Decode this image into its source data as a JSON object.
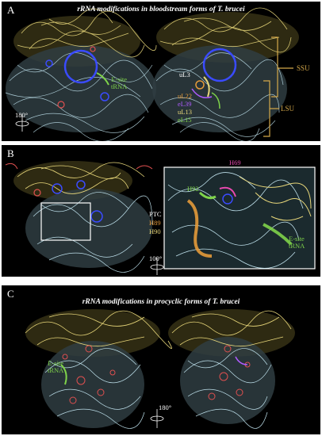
{
  "colors": {
    "background": "#000000",
    "ssu": "#e8d77a",
    "lsu": "#bfe1ec",
    "modification": "#3a4bff",
    "trna": "#7fd34a",
    "bracket": "#d4a84a",
    "ul22": "#e49a3a",
    "el39": "#b05cff",
    "ul13": "#e8d77a",
    "el15": "#7fd34a",
    "h69": "#e84ab0",
    "h89": "#e49a3a",
    "h92": "#7fd34a",
    "h90": "#e8d77a"
  },
  "panel_a": {
    "letter": "A",
    "title": "rRNA modifications in bloodstream forms of T. brucei",
    "esite_label": "E-site\ntRNA",
    "ul3": "uL3",
    "ul22": "uL22",
    "el39": "eL39",
    "ul13": "uL13",
    "el15": "eL15",
    "ssu": "SSU",
    "lsu": "LSU",
    "rotation": "180°"
  },
  "panel_b": {
    "letter": "B",
    "h69": "H69",
    "h92": "H92",
    "ptc": "PTC",
    "h89": "H89",
    "h90": "H90",
    "esite_label": "E-site\ntRNA",
    "rotation": "100°"
  },
  "panel_c": {
    "letter": "C",
    "title": "rRNA modifications in procyclic forms of T. brucei",
    "esite_label": "E-site\ntRNA",
    "rotation": "180°"
  }
}
